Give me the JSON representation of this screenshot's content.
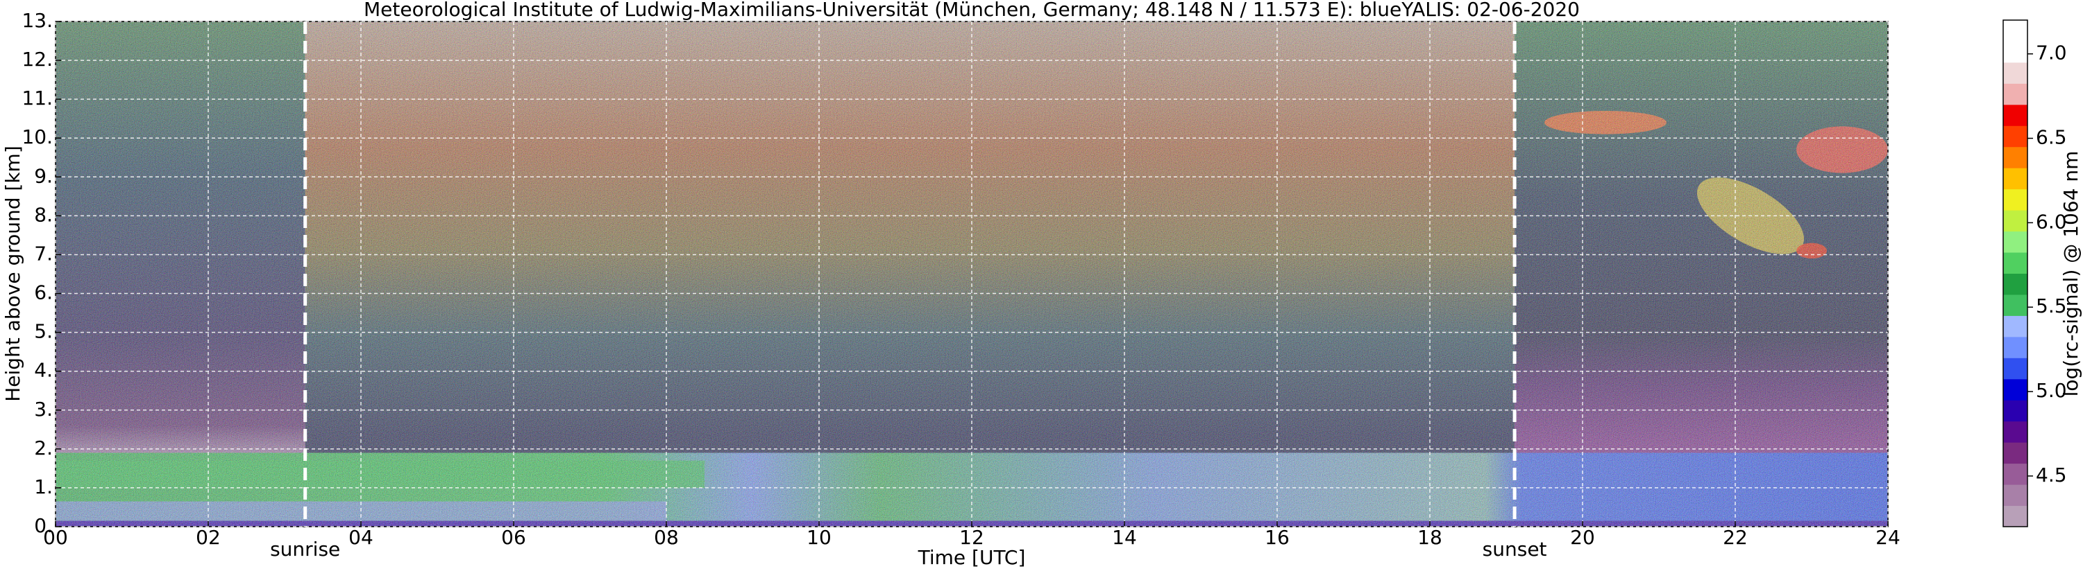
{
  "chart_data": {
    "type": "heatmap",
    "title": "Meteorological Institute of Ludwig-Maximilians-Universität (München, Germany; 48.148 N / 11.573 E):    blueYALIS: 02-06-2020",
    "xlabel": "Time [UTC]",
    "ylabel": "Height above ground [km]",
    "xlim": [
      0,
      24
    ],
    "ylim": [
      0,
      13
    ],
    "xticks": [
      {
        "value": 0,
        "label": "00"
      },
      {
        "value": 2,
        "label": "02"
      },
      {
        "value": 4,
        "label": "04"
      },
      {
        "value": 6,
        "label": "06"
      },
      {
        "value": 8,
        "label": "08"
      },
      10,
      12,
      14,
      16,
      18,
      20,
      22,
      24
    ],
    "yticks": [
      {
        "value": 0,
        "label": "0."
      },
      {
        "value": 1,
        "label": "1."
      },
      {
        "value": 2,
        "label": "2."
      },
      {
        "value": 3,
        "label": "3."
      },
      {
        "value": 4,
        "label": "4."
      },
      {
        "value": 5,
        "label": "5."
      },
      {
        "value": 6,
        "label": "6."
      },
      {
        "value": 7,
        "label": "7."
      },
      {
        "value": 8,
        "label": "8."
      },
      {
        "value": 9,
        "label": "9."
      },
      {
        "value": 10,
        "label": "10."
      },
      {
        "value": 11,
        "label": "11."
      },
      {
        "value": 12,
        "label": "12."
      },
      {
        "value": 13,
        "label": "13."
      }
    ],
    "grid": true,
    "events": [
      {
        "x": 3.27,
        "label": "sunrise"
      },
      {
        "x": 19.11,
        "label": "sunset"
      }
    ],
    "colorbar": {
      "label": "log(rc-signal) @ 1064 nm",
      "lim": [
        4.2,
        7.2
      ],
      "ticks": [
        4.5,
        {
          "value": 5.0,
          "label": "5.0"
        },
        5.5,
        {
          "value": 6.0,
          "label": "6.0"
        },
        6.5,
        {
          "value": 7.0,
          "label": "7.0"
        }
      ],
      "colors": [
        "#b8a0b8",
        "#a880a8",
        "#985c98",
        "#7a2a80",
        "#5a0a90",
        "#2a00b0",
        "#0000d8",
        "#3050f0",
        "#7090ff",
        "#a0b8ff",
        "#40c060",
        "#20a040",
        "#50d060",
        "#90f080",
        "#c0f040",
        "#f0f020",
        "#ffc000",
        "#ff8000",
        "#ff4000",
        "#f00000",
        "#f0b0b0",
        "#f0d8d8",
        "#ffffff",
        "#ffffff"
      ]
    }
  }
}
